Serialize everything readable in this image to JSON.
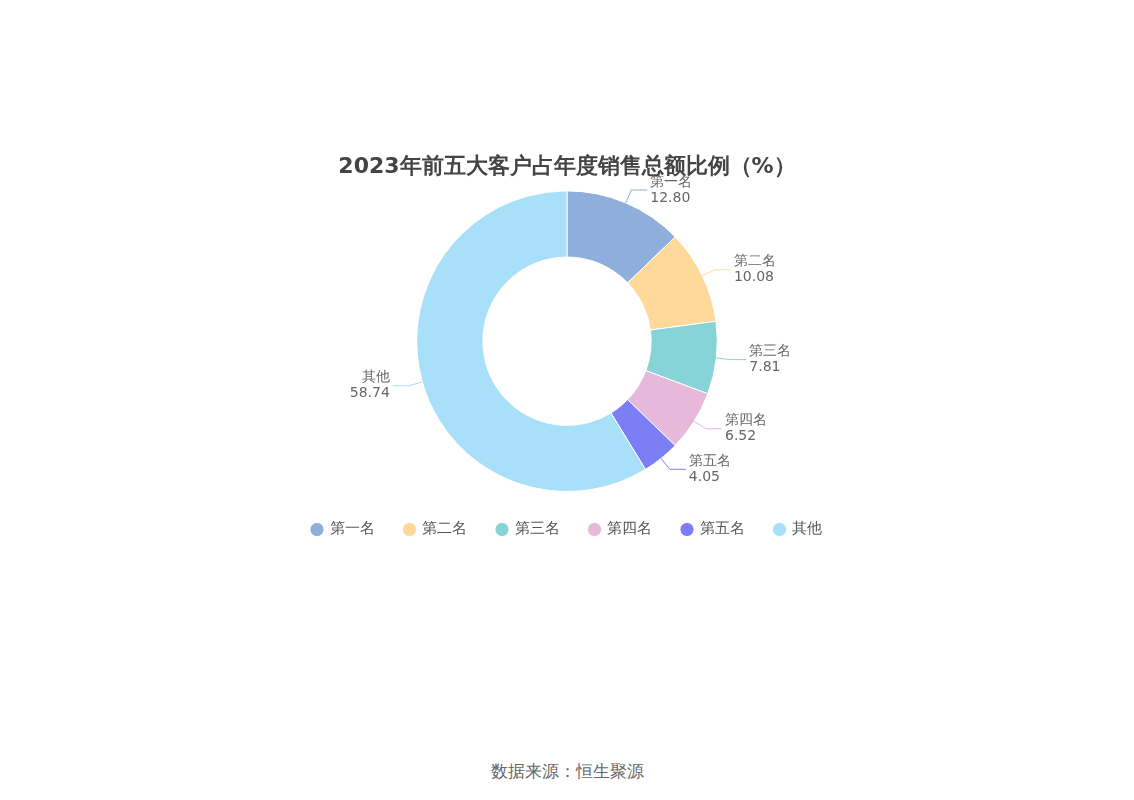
{
  "chart_data": {
    "type": "doughnut",
    "title": "2023年前五大客户占年度销售总额比例（%）",
    "categories": [
      "第一名",
      "第二名",
      "第三名",
      "第四名",
      "第五名",
      "其他"
    ],
    "values": [
      12.8,
      10.08,
      7.81,
      6.52,
      4.05,
      58.74
    ],
    "value_labels": [
      "12.80",
      "10.08",
      "7.81",
      "6.52",
      "4.05",
      "58.74"
    ],
    "colors": [
      "#8eaedb",
      "#fed99a",
      "#86d4d8",
      "#e6b8d9",
      "#7b7ef5",
      "#a8dff9"
    ],
    "data_labels": true,
    "legend": "bottom",
    "source": "数据来源：恒生聚源"
  }
}
